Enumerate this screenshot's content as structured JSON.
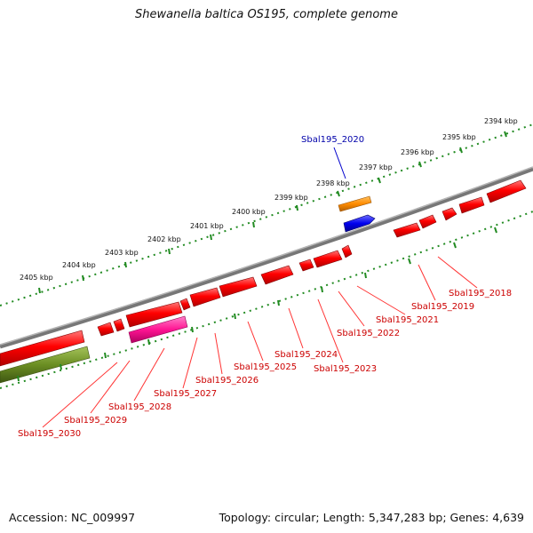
{
  "title": "Shewanella baltica OS195, complete genome",
  "footer": {
    "accession": "Accession: NC_009997",
    "summary": "Topology: circular; Length: 5,347,283 bp; Genes: 4,639"
  },
  "ruler_labels": [
    "2394 kbp",
    "2395 kbp",
    "2396 kbp",
    "2397 kbp",
    "2398 kbp",
    "2399 kbp",
    "2400 kbp",
    "2401 kbp",
    "2402 kbp",
    "2403 kbp",
    "2404 kbp",
    "2405 kbp"
  ],
  "gene_labels": [
    "Sbal195_2020",
    "Sbal195_2018",
    "Sbal195_2019",
    "Sbal195_2021",
    "Sbal195_2022",
    "Sbal195_2023",
    "Sbal195_2024",
    "Sbal195_2025",
    "Sbal195_2026",
    "Sbal195_2027",
    "Sbal195_2028",
    "Sbal195_2029",
    "Sbal195_2030"
  ],
  "colors": {
    "backbone": "#808080",
    "cds": "#ff0000",
    "gene_orange": "#ff8c00",
    "gene_blue": "#0000ee",
    "gene_pink": "#ff1493",
    "gene_olive": "#6b8e23",
    "tick": "#228b22",
    "label_red": "#cc0000",
    "label_blue": "#0000aa"
  }
}
